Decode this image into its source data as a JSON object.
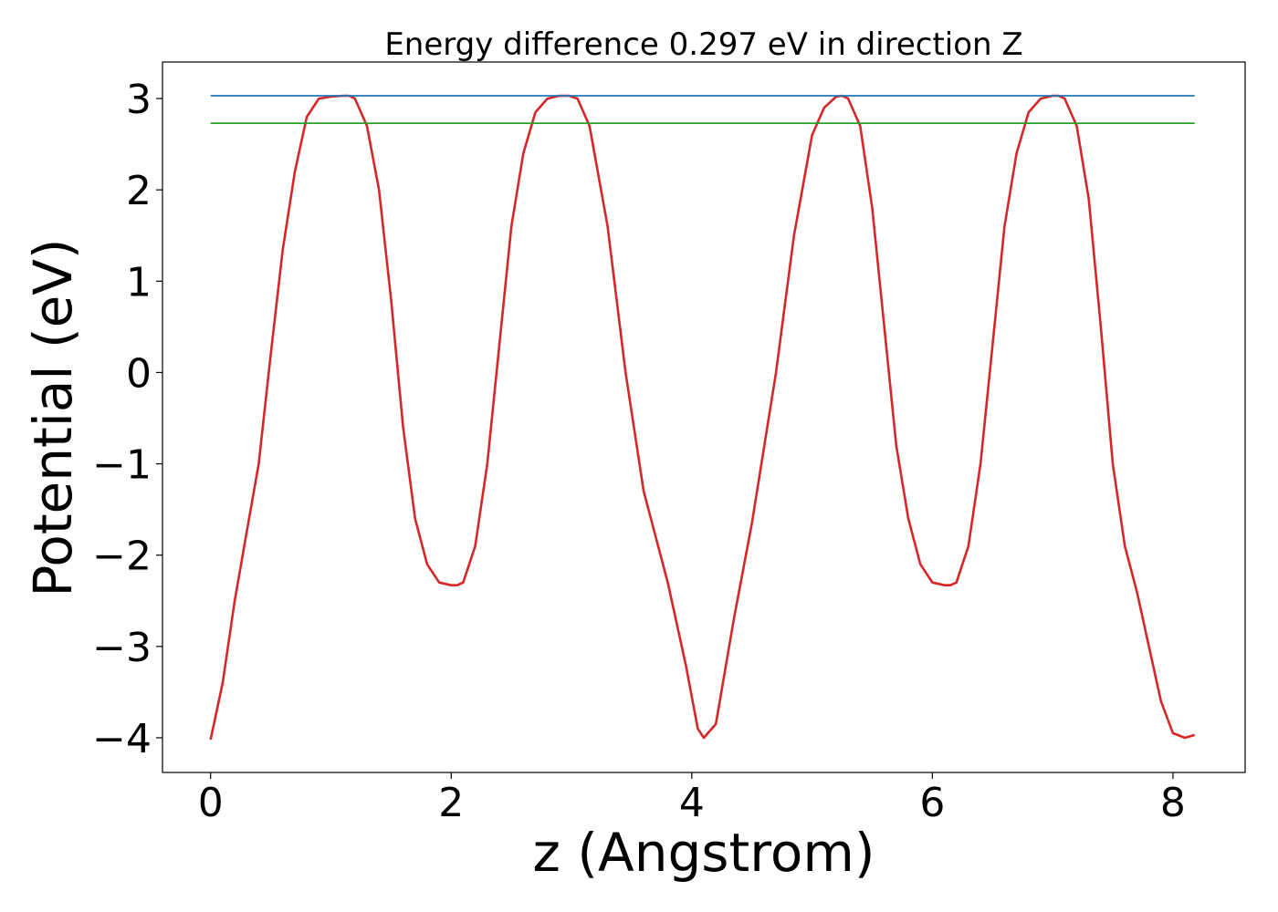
{
  "chart_data": {
    "type": "line",
    "title": "Energy difference 0.297 eV in direction Z",
    "xlabel": "z (Angstrom)",
    "ylabel": "Potential (eV)",
    "xlim": [
      -0.4,
      8.6
    ],
    "ylim": [
      -4.38,
      3.4
    ],
    "xticks": [
      0,
      2,
      4,
      6,
      8
    ],
    "xtick_labels": [
      "0",
      "2",
      "4",
      "6",
      "8"
    ],
    "yticks": [
      3,
      2,
      1,
      0,
      -1,
      -2,
      -3,
      -4
    ],
    "ytick_labels": [
      "3",
      "2",
      "1",
      "0",
      "−1",
      "−2",
      "−3",
      "−4"
    ],
    "grid": false,
    "series": [
      {
        "color": "#d62728",
        "x": [
          0,
          0.1,
          0.2,
          0.3,
          0.4,
          0.5,
          0.6,
          0.7,
          0.8,
          0.9,
          1.0,
          1.1,
          1.15,
          1.2,
          1.3,
          1.4,
          1.5,
          1.6,
          1.7,
          1.8,
          1.9,
          2.0,
          2.05,
          2.1,
          2.2,
          2.3,
          2.4,
          2.5,
          2.6,
          2.7,
          2.8,
          2.9,
          2.98,
          3.05,
          3.15,
          3.3,
          3.45,
          3.6,
          3.8,
          3.95,
          4.05,
          4.1,
          4.2,
          4.35,
          4.5,
          4.7,
          4.85,
          5.0,
          5.1,
          5.2,
          5.25,
          5.3,
          5.4,
          5.5,
          5.6,
          5.7,
          5.8,
          5.9,
          6.0,
          6.1,
          6.15,
          6.2,
          6.3,
          6.4,
          6.5,
          6.6,
          6.7,
          6.8,
          6.9,
          7.0,
          7.05,
          7.1,
          7.2,
          7.3,
          7.4,
          7.5,
          7.6,
          7.7,
          7.8,
          7.9,
          8.0,
          8.1,
          8.18
        ],
        "y": [
          -4.02,
          -3.4,
          -2.5,
          -1.75,
          -1.0,
          0.2,
          1.35,
          2.2,
          2.8,
          3.0,
          3.02,
          3.03,
          3.03,
          3.0,
          2.7,
          2.0,
          0.8,
          -0.6,
          -1.6,
          -2.1,
          -2.3,
          -2.33,
          -2.33,
          -2.3,
          -1.9,
          -1.0,
          0.3,
          1.6,
          2.4,
          2.85,
          3.0,
          3.03,
          3.03,
          3.0,
          2.7,
          1.6,
          0.0,
          -1.3,
          -2.3,
          -3.2,
          -3.9,
          -4.0,
          -3.85,
          -2.7,
          -1.65,
          0.0,
          1.5,
          2.6,
          2.9,
          3.02,
          3.03,
          3.0,
          2.7,
          1.8,
          0.5,
          -0.8,
          -1.6,
          -2.1,
          -2.3,
          -2.33,
          -2.33,
          -2.3,
          -1.9,
          -1.0,
          0.3,
          1.6,
          2.4,
          2.85,
          3.0,
          3.03,
          3.03,
          3.0,
          2.7,
          1.9,
          0.5,
          -1.0,
          -1.9,
          -2.4,
          -3.0,
          -3.6,
          -3.95,
          -4.0,
          -3.97
        ]
      },
      {
        "color": "#1f77b4",
        "x": [
          0,
          8.18
        ],
        "y": [
          3.03,
          3.03
        ]
      },
      {
        "color": "#2ca02c",
        "x": [
          0,
          8.18
        ],
        "y": [
          2.73,
          2.73
        ]
      }
    ]
  }
}
